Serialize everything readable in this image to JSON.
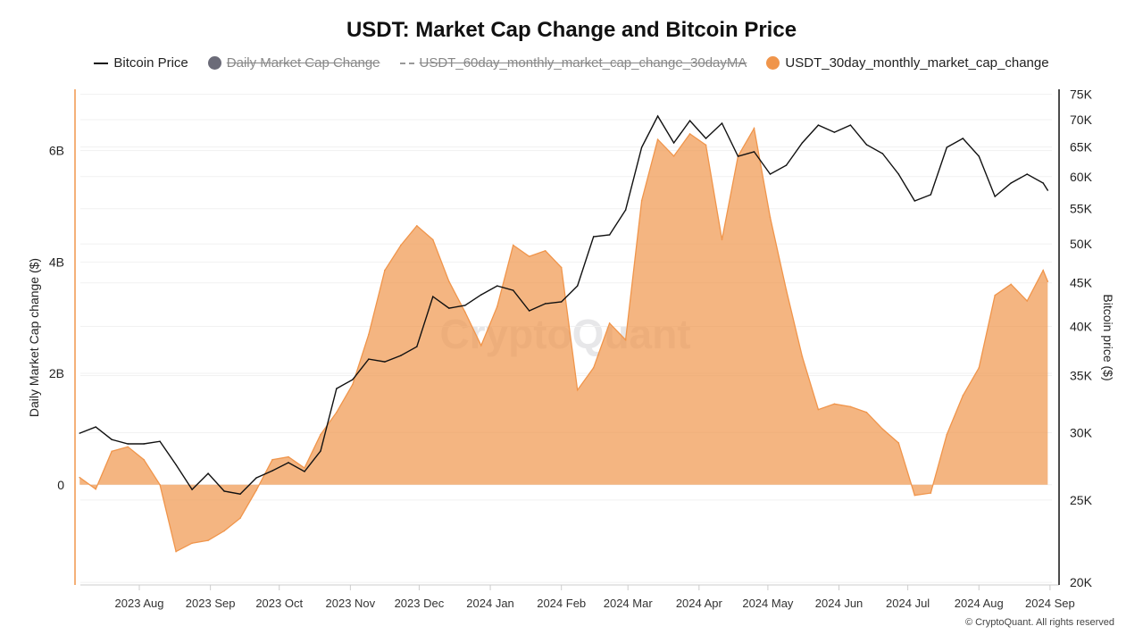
{
  "title": "USDT: Market Cap Change and Bitcoin Price",
  "legend": [
    {
      "label": "Bitcoin Price",
      "marker": "line",
      "color": "#111111",
      "visible": true
    },
    {
      "label": "Daily Market Cap Change",
      "marker": "dot",
      "color": "#6b6b78",
      "visible": false
    },
    {
      "label": "USDT_60day_monthly_market_cap_change_30dayMA",
      "marker": "dashed-line",
      "color": "#999999",
      "visible": false
    },
    {
      "label": "USDT_30day_monthly_market_cap_change",
      "marker": "dot",
      "color": "#f0954b",
      "visible": true
    }
  ],
  "watermark": "CryptoQuant",
  "footer": "© CryptoQuant. All rights reserved",
  "chart_data": {
    "type": "area+line",
    "title": "USDT: Market Cap Change and Bitcoin Price",
    "xlabel": "",
    "ylabel_left": "Daily Market Cap change ($)",
    "ylabel_right": "Bitcoin price ($)",
    "left_axis": {
      "range": [
        -1800000000,
        7100000000
      ],
      "ticks": [
        0,
        2000000000,
        4000000000,
        6000000000
      ],
      "tick_labels": [
        "0",
        "2B",
        "4B",
        "6B"
      ],
      "color": "#f0954b"
    },
    "right_axis": {
      "scale": "log",
      "range": [
        19860,
        76000
      ],
      "ticks": [
        20000,
        25000,
        30000,
        35000,
        40000,
        45000,
        50000,
        55000,
        60000,
        65000,
        70000,
        75000
      ],
      "tick_labels": [
        "20K",
        "25K",
        "30K",
        "35K",
        "40K",
        "45K",
        "50K",
        "55K",
        "60K",
        "65K",
        "70K",
        "75K"
      ]
    },
    "x_axis": {
      "range": [
        "2023-07-06",
        "2024-09-01"
      ],
      "ticks": [
        "2023-08-01",
        "2023-09-01",
        "2023-10-01",
        "2023-11-01",
        "2023-12-01",
        "2024-01-01",
        "2024-02-01",
        "2024-03-01",
        "2024-04-01",
        "2024-05-01",
        "2024-06-01",
        "2024-07-01",
        "2024-08-01",
        "2024-09-01"
      ],
      "tick_labels": [
        "2023 Aug",
        "2023 Sep",
        "2023 Oct",
        "2023 Nov",
        "2023 Dec",
        "2024 Jan",
        "2024 Feb",
        "2024 Mar",
        "2024 Apr",
        "2024 May",
        "2024 Jun",
        "2024 Jul",
        "2024 Aug",
        "2024 Sep"
      ]
    },
    "grid": true,
    "legend_position": "top",
    "x": [
      "2023-07-06",
      "2023-07-13",
      "2023-07-20",
      "2023-07-27",
      "2023-08-03",
      "2023-08-10",
      "2023-08-17",
      "2023-08-24",
      "2023-08-31",
      "2023-09-07",
      "2023-09-14",
      "2023-09-21",
      "2023-09-28",
      "2023-10-05",
      "2023-10-12",
      "2023-10-19",
      "2023-10-26",
      "2023-11-02",
      "2023-11-09",
      "2023-11-16",
      "2023-11-23",
      "2023-11-30",
      "2023-12-07",
      "2023-12-14",
      "2023-12-21",
      "2023-12-28",
      "2024-01-04",
      "2024-01-11",
      "2024-01-18",
      "2024-01-25",
      "2024-02-01",
      "2024-02-08",
      "2024-02-15",
      "2024-02-22",
      "2024-02-29",
      "2024-03-07",
      "2024-03-14",
      "2024-03-21",
      "2024-03-28",
      "2024-04-04",
      "2024-04-11",
      "2024-04-18",
      "2024-04-25",
      "2024-05-02",
      "2024-05-09",
      "2024-05-16",
      "2024-05-23",
      "2024-05-30",
      "2024-06-06",
      "2024-06-13",
      "2024-06-20",
      "2024-06-27",
      "2024-07-04",
      "2024-07-11",
      "2024-07-18",
      "2024-07-25",
      "2024-08-01",
      "2024-08-08",
      "2024-08-15",
      "2024-08-22",
      "2024-08-29",
      "2024-08-31"
    ],
    "series": [
      {
        "name": "USDT_30day_monthly_market_cap_change",
        "type": "area",
        "axis": "left",
        "color": "#f0954b",
        "unit": "B USD",
        "values": [
          0.13,
          -0.08,
          0.6,
          0.68,
          0.45,
          0.0,
          -1.2,
          -1.05,
          -1.0,
          -0.83,
          -0.6,
          -0.1,
          0.45,
          0.5,
          0.3,
          0.9,
          1.3,
          1.8,
          2.7,
          3.85,
          4.3,
          4.65,
          4.4,
          3.65,
          3.1,
          2.5,
          3.2,
          4.3,
          4.1,
          4.2,
          3.9,
          1.7,
          2.1,
          2.9,
          2.6,
          5.1,
          6.2,
          5.9,
          6.3,
          6.1,
          4.4,
          5.9,
          6.4,
          4.8,
          3.5,
          2.3,
          1.35,
          1.45,
          1.4,
          1.3,
          1.0,
          0.75,
          -0.19,
          -0.15,
          0.9,
          1.6,
          2.1,
          3.4,
          3.6,
          3.3,
          3.85,
          3.65
        ]
      },
      {
        "name": "Bitcoin Price",
        "type": "line",
        "axis": "right",
        "color": "#111111",
        "unit": "USD",
        "values": [
          29950,
          30460,
          29440,
          29100,
          29100,
          29300,
          27500,
          25720,
          26860,
          25600,
          25400,
          26540,
          27060,
          27660,
          27000,
          28540,
          33800,
          34630,
          36610,
          36340,
          36960,
          37860,
          43360,
          42020,
          42330,
          43570,
          44640,
          44100,
          41720,
          42540,
          42740,
          44640,
          51000,
          51240,
          54820,
          64940,
          70680,
          65740,
          69820,
          66540,
          69320,
          63400,
          64180,
          60400,
          61860,
          65740,
          68980,
          67660,
          68980,
          65420,
          63860,
          60400,
          56180,
          57140,
          64940,
          66540,
          63400,
          56860,
          58960,
          60400,
          58960,
          57820
        ]
      }
    ]
  }
}
